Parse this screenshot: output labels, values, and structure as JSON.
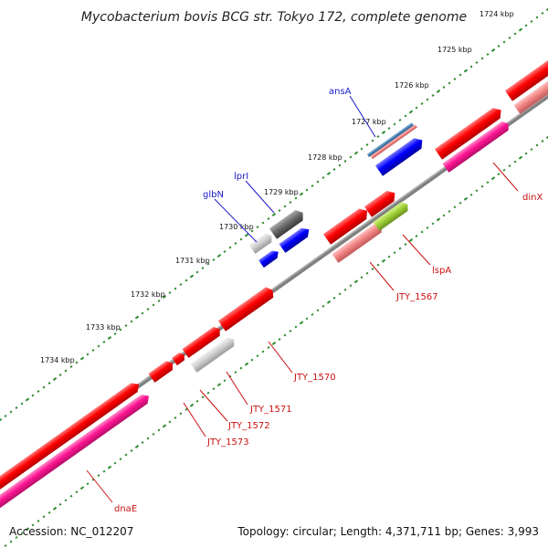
{
  "title": "Mycobacterium bovis BCG str. Tokyo 172, complete genome",
  "footer": {
    "accession": "Accession: NC_012207",
    "info": "Topology: circular; Length: 4,371,711 bp; Genes: 3,993"
  },
  "scale_labels": [
    "1724 kbp",
    "1725 kbp",
    "1726 kbp",
    "1727 kbp",
    "1728 kbp",
    "1729 kbp",
    "1730 kbp",
    "1731 kbp",
    "1732 kbp",
    "1733 kbp",
    "1734 kbp"
  ],
  "gene_labels": {
    "ansA": "ansA",
    "lprI": "lprI",
    "glbN": "glbN",
    "dinX": "dinX",
    "lspA": "lspA",
    "JTY_1567": "JTY_1567",
    "JTY_1570": "JTY_1570",
    "JTY_1571": "JTY_1571",
    "JTY_1572": "JTY_1572",
    "JTY_1573": "JTY_1573",
    "dnaE": "dnaE"
  },
  "colors": {
    "backbone": "#808080",
    "scale_ticks": "#2e8b2e",
    "cds_forward": "#0000ff",
    "cds_reverse": "#ff0000",
    "gene_reverse": "#ff1493",
    "pseudo": "#f08080",
    "gray_gene": "#666666",
    "light_gray_gene": "#cccccc",
    "lime_gene": "#9acd32",
    "steelblue_gene": "#4682b4"
  }
}
